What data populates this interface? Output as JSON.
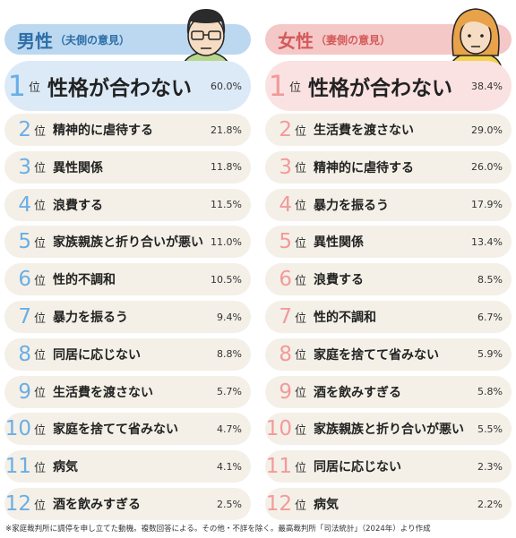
{
  "left": {
    "title": "男性",
    "subtitle": "（夫側の意見）",
    "rows": [
      {
        "rank": "1",
        "item": "性格が合わない",
        "percent": "60.0%"
      },
      {
        "rank": "2",
        "item": "精神的に虐待する",
        "percent": "21.8%"
      },
      {
        "rank": "3",
        "item": "異性関係",
        "percent": "11.8%"
      },
      {
        "rank": "4",
        "item": "浪費する",
        "percent": "11.5%"
      },
      {
        "rank": "5",
        "item": "家族親族と折り合いが悪い",
        "percent": "11.0%"
      },
      {
        "rank": "6",
        "item": "性的不調和",
        "percent": "10.5%"
      },
      {
        "rank": "7",
        "item": "暴力を振るう",
        "percent": "9.4%"
      },
      {
        "rank": "8",
        "item": "同居に応じない",
        "percent": "8.8%"
      },
      {
        "rank": "9",
        "item": "生活費を渡さない",
        "percent": "5.7%"
      },
      {
        "rank": "10",
        "item": "家庭を捨てて省みない",
        "percent": "4.7%"
      },
      {
        "rank": "11",
        "item": "病気",
        "percent": "4.1%"
      },
      {
        "rank": "12",
        "item": "酒を飲みすぎる",
        "percent": "2.5%"
      }
    ]
  },
  "right": {
    "title": "女性",
    "subtitle": "（妻側の意見）",
    "rows": [
      {
        "rank": "1",
        "item": "性格が合わない",
        "percent": "38.4%"
      },
      {
        "rank": "2",
        "item": "生活費を渡さない",
        "percent": "29.0%"
      },
      {
        "rank": "3",
        "item": "精神的に虐待する",
        "percent": "26.0%"
      },
      {
        "rank": "4",
        "item": "暴力を振るう",
        "percent": "17.9%"
      },
      {
        "rank": "5",
        "item": "異性関係",
        "percent": "13.4%"
      },
      {
        "rank": "6",
        "item": "浪費する",
        "percent": "8.5%"
      },
      {
        "rank": "7",
        "item": "性的不調和",
        "percent": "6.7%"
      },
      {
        "rank": "8",
        "item": "家庭を捨てて省みない",
        "percent": "5.9%"
      },
      {
        "rank": "9",
        "item": "酒を飲みすぎる",
        "percent": "5.8%"
      },
      {
        "rank": "10",
        "item": "家族親族と折り合いが悪い",
        "percent": "5.5%"
      },
      {
        "rank": "11",
        "item": "同居に応じない",
        "percent": "2.3%"
      },
      {
        "rank": "12",
        "item": "病気",
        "percent": "2.2%"
      }
    ]
  },
  "rank_suffix": "位",
  "footnote": "※家庭裁判所に調停を申し立てた動機。複数回答による。その他・不詳を除く。最高裁判所「司法統計」（2024年）より作成"
}
